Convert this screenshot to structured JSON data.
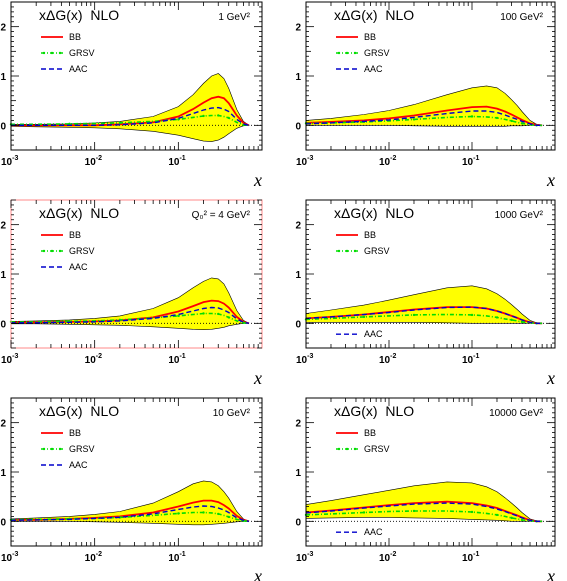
{
  "colors": {
    "band": "#ffff00",
    "band_edge": "#000000",
    "BB": "#ff0000",
    "GRSV": "#00dd00",
    "AAC": "#0000cc",
    "highlight_frame": "#ff8888",
    "frame": "#000000"
  },
  "chart_data": [
    {
      "type": "line",
      "title": "xΔG(x)  NLO",
      "scale_label": "1 GeV²",
      "xlabel": "x",
      "xscale": "log",
      "xlim": [
        0.001,
        1
      ],
      "ylim": [
        -0.5,
        2.5
      ],
      "x_ticks": [
        {
          "exp": "-3"
        },
        {
          "exp": "-2"
        },
        {
          "exp": "-1"
        }
      ],
      "y_ticks": [
        "0",
        "1",
        "2"
      ],
      "legend": [
        "BB",
        "GRSV",
        "AAC"
      ],
      "highlighted": false,
      "x": [
        0.001,
        0.002,
        0.005,
        0.01,
        0.02,
        0.05,
        0.1,
        0.15,
        0.2,
        0.25,
        0.3,
        0.35,
        0.4,
        0.5,
        0.6,
        0.7
      ],
      "series": [
        {
          "name": "BB",
          "values": [
            0.0,
            0.0,
            0.0,
            0.0,
            0.02,
            0.06,
            0.18,
            0.33,
            0.46,
            0.55,
            0.58,
            0.55,
            0.45,
            0.2,
            0.05,
            0.0
          ]
        },
        {
          "name": "GRSV",
          "values": [
            0.02,
            0.02,
            0.03,
            0.04,
            0.05,
            0.08,
            0.12,
            0.16,
            0.19,
            0.2,
            0.2,
            0.18,
            0.15,
            0.06,
            0.01,
            0.0
          ]
        },
        {
          "name": "AAC",
          "values": [
            0.0,
            0.0,
            0.0,
            0.0,
            0.01,
            0.05,
            0.14,
            0.24,
            0.31,
            0.35,
            0.36,
            0.33,
            0.28,
            0.12,
            0.03,
            0.0
          ]
        }
      ],
      "band": {
        "upper": [
          0.02,
          0.02,
          0.03,
          0.05,
          0.08,
          0.18,
          0.38,
          0.62,
          0.85,
          1.0,
          1.05,
          0.95,
          0.75,
          0.32,
          0.08,
          0.0
        ],
        "lower": [
          -0.02,
          -0.03,
          -0.04,
          -0.05,
          -0.07,
          -0.12,
          -0.2,
          -0.27,
          -0.32,
          -0.33,
          -0.3,
          -0.24,
          -0.17,
          -0.06,
          -0.01,
          0.0
        ]
      }
    },
    {
      "type": "line",
      "title": "xΔG(x)  NLO",
      "scale_label": "100 GeV²",
      "xlabel": "x",
      "xscale": "log",
      "xlim": [
        0.001,
        1
      ],
      "ylim": [
        -0.5,
        2.5
      ],
      "x_ticks": [
        {
          "exp": "-3"
        },
        {
          "exp": "-2"
        },
        {
          "exp": "-1"
        }
      ],
      "y_ticks": [
        "0",
        "1",
        "2"
      ],
      "legend": [
        "BB",
        "GRSV",
        "AAC"
      ],
      "highlighted": false,
      "x": [
        0.001,
        0.002,
        0.005,
        0.01,
        0.02,
        0.05,
        0.1,
        0.15,
        0.2,
        0.25,
        0.3,
        0.35,
        0.4,
        0.5,
        0.6,
        0.7
      ],
      "series": [
        {
          "name": "BB",
          "values": [
            0.05,
            0.07,
            0.1,
            0.14,
            0.2,
            0.3,
            0.37,
            0.38,
            0.34,
            0.28,
            0.22,
            0.16,
            0.11,
            0.04,
            0.01,
            0.0
          ]
        },
        {
          "name": "GRSV",
          "values": [
            0.04,
            0.05,
            0.07,
            0.09,
            0.12,
            0.16,
            0.18,
            0.17,
            0.15,
            0.12,
            0.09,
            0.06,
            0.04,
            0.01,
            0.0,
            0.0
          ]
        },
        {
          "name": "AAC",
          "values": [
            0.03,
            0.05,
            0.08,
            0.11,
            0.16,
            0.24,
            0.29,
            0.29,
            0.26,
            0.21,
            0.16,
            0.12,
            0.08,
            0.03,
            0.0,
            0.0
          ]
        }
      ],
      "band": {
        "upper": [
          0.1,
          0.14,
          0.22,
          0.3,
          0.42,
          0.62,
          0.76,
          0.8,
          0.76,
          0.65,
          0.52,
          0.4,
          0.28,
          0.1,
          0.02,
          0.0
        ],
        "lower": [
          0.0,
          0.0,
          0.0,
          0.0,
          -0.01,
          -0.02,
          -0.02,
          -0.02,
          -0.02,
          -0.02,
          -0.01,
          -0.01,
          -0.01,
          0.0,
          0.0,
          0.0
        ]
      }
    },
    {
      "type": "line",
      "title": "xΔG(x)  NLO",
      "scale_label": "Q₀² = 4 GeV²",
      "xlabel": "x",
      "xscale": "log",
      "xlim": [
        0.001,
        1
      ],
      "ylim": [
        -0.5,
        2.5
      ],
      "x_ticks": [
        {
          "exp": "-3"
        },
        {
          "exp": "-2"
        },
        {
          "exp": "-1"
        }
      ],
      "y_ticks": [
        "0",
        "1",
        "2"
      ],
      "legend": [
        "BB",
        "GRSV",
        "AAC"
      ],
      "highlighted": true,
      "x": [
        0.001,
        0.002,
        0.005,
        0.01,
        0.02,
        0.05,
        0.1,
        0.15,
        0.2,
        0.25,
        0.3,
        0.35,
        0.4,
        0.5,
        0.6,
        0.7
      ],
      "series": [
        {
          "name": "BB",
          "values": [
            0.02,
            0.02,
            0.03,
            0.04,
            0.06,
            0.12,
            0.24,
            0.35,
            0.43,
            0.46,
            0.45,
            0.4,
            0.32,
            0.13,
            0.03,
            0.0
          ]
        },
        {
          "name": "GRSV",
          "values": [
            0.03,
            0.03,
            0.04,
            0.05,
            0.07,
            0.11,
            0.15,
            0.18,
            0.2,
            0.2,
            0.19,
            0.16,
            0.12,
            0.05,
            0.01,
            0.0
          ]
        },
        {
          "name": "AAC",
          "values": [
            0.01,
            0.01,
            0.02,
            0.03,
            0.05,
            0.1,
            0.18,
            0.25,
            0.3,
            0.32,
            0.31,
            0.27,
            0.22,
            0.09,
            0.02,
            0.0
          ]
        }
      ],
      "band": {
        "upper": [
          0.04,
          0.05,
          0.07,
          0.1,
          0.15,
          0.3,
          0.52,
          0.72,
          0.85,
          0.92,
          0.9,
          0.8,
          0.62,
          0.26,
          0.06,
          0.0
        ],
        "lower": [
          -0.01,
          -0.01,
          -0.02,
          -0.03,
          -0.04,
          -0.07,
          -0.1,
          -0.12,
          -0.13,
          -0.12,
          -0.1,
          -0.08,
          -0.05,
          -0.02,
          0.0,
          0.0
        ]
      }
    },
    {
      "type": "line",
      "title": "xΔG(x)  NLO",
      "scale_label": "1000 GeV²",
      "xlabel": "x",
      "xscale": "log",
      "xlim": [
        0.001,
        1
      ],
      "ylim": [
        -0.5,
        2.5
      ],
      "x_ticks": [
        {
          "exp": "-3"
        },
        {
          "exp": "-2"
        },
        {
          "exp": "-1"
        }
      ],
      "y_ticks": [
        "0",
        "1",
        "2"
      ],
      "legend": [
        "BB",
        "GRSV",
        "AAC"
      ],
      "legend_aac_lower": true,
      "highlighted": false,
      "x": [
        0.001,
        0.002,
        0.005,
        0.01,
        0.02,
        0.05,
        0.1,
        0.15,
        0.2,
        0.25,
        0.3,
        0.35,
        0.4,
        0.5,
        0.6,
        0.7
      ],
      "series": [
        {
          "name": "BB",
          "values": [
            0.1,
            0.13,
            0.18,
            0.23,
            0.28,
            0.33,
            0.33,
            0.3,
            0.25,
            0.2,
            0.15,
            0.11,
            0.07,
            0.02,
            0.0,
            0.0
          ]
        },
        {
          "name": "GRSV",
          "values": [
            0.08,
            0.1,
            0.13,
            0.15,
            0.17,
            0.18,
            0.17,
            0.15,
            0.12,
            0.09,
            0.07,
            0.05,
            0.03,
            0.01,
            0.0,
            0.0
          ]
        },
        {
          "name": "AAC",
          "values": [
            0.1,
            0.13,
            0.18,
            0.22,
            0.27,
            0.32,
            0.33,
            0.3,
            0.25,
            0.2,
            0.15,
            0.11,
            0.07,
            0.02,
            0.0,
            0.0
          ]
        }
      ],
      "band": {
        "upper": [
          0.2,
          0.27,
          0.37,
          0.47,
          0.58,
          0.72,
          0.76,
          0.7,
          0.6,
          0.49,
          0.38,
          0.28,
          0.19,
          0.06,
          0.01,
          0.0
        ],
        "lower": [
          0.02,
          0.02,
          0.02,
          0.02,
          0.02,
          0.01,
          0.0,
          0.0,
          0.0,
          0.0,
          0.0,
          0.0,
          0.0,
          0.0,
          0.0,
          0.0
        ]
      }
    },
    {
      "type": "line",
      "title": "xΔG(x)  NLO",
      "scale_label": "10 GeV²",
      "xlabel": "x",
      "xscale": "log",
      "xlim": [
        0.001,
        1
      ],
      "ylim": [
        -0.5,
        2.5
      ],
      "x_ticks": [
        {
          "exp": "-3"
        },
        {
          "exp": "-2"
        },
        {
          "exp": "-1"
        }
      ],
      "y_ticks": [
        "0",
        "1",
        "2"
      ],
      "legend": [
        "BB",
        "GRSV",
        "AAC"
      ],
      "highlighted": false,
      "x": [
        0.001,
        0.002,
        0.005,
        0.01,
        0.02,
        0.05,
        0.1,
        0.15,
        0.2,
        0.25,
        0.3,
        0.35,
        0.4,
        0.5,
        0.6,
        0.7
      ],
      "series": [
        {
          "name": "BB",
          "values": [
            0.03,
            0.03,
            0.05,
            0.07,
            0.1,
            0.18,
            0.3,
            0.38,
            0.42,
            0.42,
            0.39,
            0.33,
            0.26,
            0.11,
            0.03,
            0.0
          ]
        },
        {
          "name": "GRSV",
          "values": [
            0.03,
            0.04,
            0.05,
            0.06,
            0.08,
            0.12,
            0.16,
            0.18,
            0.18,
            0.17,
            0.15,
            0.12,
            0.09,
            0.04,
            0.01,
            0.0
          ]
        },
        {
          "name": "AAC",
          "values": [
            0.02,
            0.03,
            0.04,
            0.06,
            0.08,
            0.15,
            0.24,
            0.29,
            0.31,
            0.3,
            0.27,
            0.23,
            0.18,
            0.07,
            0.02,
            0.0
          ]
        }
      ],
      "band": {
        "upper": [
          0.05,
          0.07,
          0.1,
          0.14,
          0.2,
          0.37,
          0.6,
          0.76,
          0.82,
          0.8,
          0.72,
          0.6,
          0.47,
          0.2,
          0.05,
          0.0
        ],
        "lower": [
          0.0,
          0.0,
          0.0,
          -0.01,
          -0.02,
          -0.04,
          -0.06,
          -0.07,
          -0.07,
          -0.06,
          -0.05,
          -0.04,
          -0.03,
          -0.01,
          0.0,
          0.0
        ]
      }
    },
    {
      "type": "line",
      "title": "xΔG(x)  NLO",
      "scale_label": "10000 GeV²",
      "xlabel": "x",
      "xscale": "log",
      "xlim": [
        0.001,
        1
      ],
      "ylim": [
        -0.5,
        2.5
      ],
      "x_ticks": [
        {
          "exp": "-3"
        },
        {
          "exp": "-2"
        },
        {
          "exp": "-1"
        }
      ],
      "y_ticks": [
        "0",
        "1",
        "2"
      ],
      "legend": [
        "BB",
        "GRSV",
        "AAC"
      ],
      "legend_aac_lower": true,
      "highlighted": false,
      "x": [
        0.001,
        0.002,
        0.005,
        0.01,
        0.02,
        0.05,
        0.1,
        0.15,
        0.2,
        0.25,
        0.3,
        0.35,
        0.4,
        0.5,
        0.6,
        0.7
      ],
      "series": [
        {
          "name": "BB",
          "values": [
            0.18,
            0.22,
            0.28,
            0.33,
            0.37,
            0.4,
            0.37,
            0.32,
            0.27,
            0.21,
            0.16,
            0.12,
            0.08,
            0.02,
            0.0,
            0.0
          ]
        },
        {
          "name": "GRSV",
          "values": [
            0.13,
            0.15,
            0.18,
            0.2,
            0.21,
            0.21,
            0.19,
            0.16,
            0.13,
            0.1,
            0.07,
            0.05,
            0.03,
            0.01,
            0.0,
            0.0
          ]
        },
        {
          "name": "AAC",
          "values": [
            0.17,
            0.21,
            0.27,
            0.31,
            0.35,
            0.37,
            0.35,
            0.3,
            0.25,
            0.2,
            0.15,
            0.11,
            0.07,
            0.02,
            0.0,
            0.0
          ]
        }
      ],
      "band": {
        "upper": [
          0.34,
          0.42,
          0.54,
          0.63,
          0.72,
          0.8,
          0.78,
          0.7,
          0.6,
          0.48,
          0.37,
          0.27,
          0.18,
          0.05,
          0.01,
          0.0
        ],
        "lower": [
          0.06,
          0.07,
          0.08,
          0.08,
          0.07,
          0.06,
          0.04,
          0.03,
          0.02,
          0.01,
          0.0,
          0.0,
          0.0,
          0.0,
          0.0,
          0.0
        ]
      }
    }
  ]
}
